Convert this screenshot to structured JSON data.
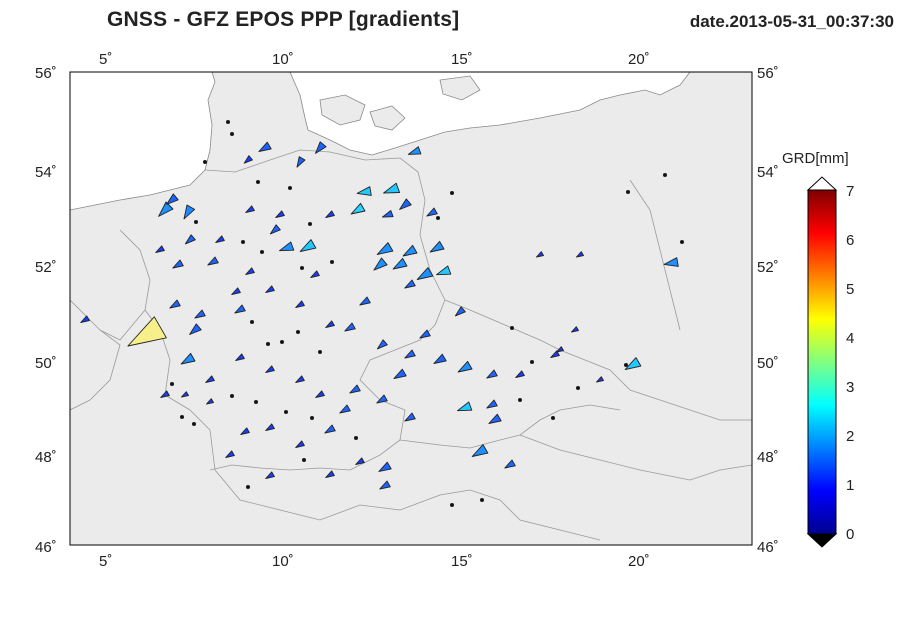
{
  "header": {
    "title": "GNSS  -  GFZ EPOS PPP [gradients]",
    "date": "date.2013-05-31_00:37:30"
  },
  "map": {
    "lon_ticks": [
      "5˚",
      "10˚",
      "15˚",
      "20˚"
    ],
    "lat_ticks_left": [
      "56˚",
      "54˚",
      "52˚",
      "50˚",
      "48˚",
      "46˚"
    ],
    "lat_ticks_right": [
      "56˚",
      "54˚",
      "52˚",
      "50˚",
      "48˚",
      "46˚"
    ]
  },
  "colorbar": {
    "label": "GRD[mm]",
    "ticks": [
      "0",
      "1",
      "2",
      "3",
      "4",
      "5",
      "6",
      "7"
    ],
    "colors": [
      "#00008f",
      "#0000ff",
      "#0080ff",
      "#00ffff",
      "#80ff80",
      "#ffff00",
      "#ff8000",
      "#ff0000",
      "#800000"
    ]
  }
}
